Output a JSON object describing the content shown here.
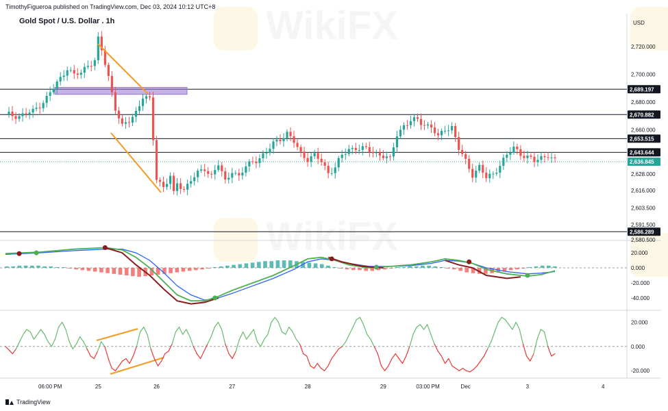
{
  "header": {
    "publisher": "TimothyFigueroa published on TradingView.com, Dec 03, 2024 10:12 UTC+8"
  },
  "chart": {
    "title": "Gold Spot / U.S. Dollar . 1h",
    "currency": "USD"
  },
  "watermark": {
    "text": "WikiFX"
  },
  "footer": {
    "brand": "TradingView"
  },
  "colors": {
    "bull": "#26a69a",
    "bear": "#ef5350",
    "wedge": "#f59a23",
    "zone": "#9575cd",
    "macd_fast": "#4caf50",
    "macd_slow": "#2962ff",
    "macd_dark": "#8b1a1a",
    "rsi_up": "#66bb6a",
    "rsi_down": "#e53935"
  },
  "chart_data": [
    {
      "type": "candlestick",
      "title": "Gold Spot / U.S. Dollar . 1h",
      "ylabel": "USD",
      "ylim": [
        2578,
        2732
      ],
      "y_ticks": [
        2720.0,
        2700.0,
        2680.0,
        2660.0,
        2628.0,
        2616.0,
        2603.5,
        2591.5,
        2580.5
      ],
      "y_tick_labels": [
        "2,720.000",
        "2,700.000",
        "2,680.000",
        "2,660.000",
        "2,628.000",
        "2,616.000",
        "2,603.500",
        "2,591.500",
        "2,580.500"
      ],
      "x_labels": [
        "06:00 PM",
        "25",
        "26",
        "27",
        "28",
        "29",
        "03:00 PM",
        "Dec",
        "3",
        "4"
      ],
      "levels": [
        {
          "value": 2689.197,
          "label": "2,689.197"
        },
        {
          "value": 2670.882,
          "label": "2,670.882"
        },
        {
          "value": 2653.515,
          "label": "2,653.515"
        },
        {
          "value": 2643.644,
          "label": "2,643.644"
        },
        {
          "value": 2586.289,
          "label": "2,586.289"
        }
      ],
      "last_price": {
        "value": 2636.845,
        "label": "2,636.845"
      },
      "zone": {
        "low": 2685.5,
        "high": 2690.5
      },
      "close_path": [
        [
          0,
          2671
        ],
        [
          4,
          2670
        ],
        [
          8,
          2673
        ],
        [
          12,
          2683
        ],
        [
          14,
          2690
        ],
        [
          16,
          2697
        ],
        [
          18,
          2705
        ],
        [
          20,
          2699
        ],
        [
          22,
          2701
        ],
        [
          24,
          2707
        ],
        [
          26,
          2710
        ],
        [
          27,
          2725
        ],
        [
          28,
          2717
        ],
        [
          30,
          2698
        ],
        [
          32,
          2676
        ],
        [
          34,
          2662
        ],
        [
          36,
          2666
        ],
        [
          38,
          2673
        ],
        [
          40,
          2684
        ],
        [
          42,
          2681
        ],
        [
          44,
          2625
        ],
        [
          46,
          2619
        ],
        [
          48,
          2626
        ],
        [
          49,
          2613
        ],
        [
          50,
          2621
        ],
        [
          52,
          2617
        ],
        [
          54,
          2624
        ],
        [
          56,
          2628
        ],
        [
          58,
          2632
        ],
        [
          60,
          2627
        ],
        [
          62,
          2635
        ],
        [
          64,
          2622
        ],
        [
          66,
          2631
        ],
        [
          68,
          2626
        ],
        [
          70,
          2633
        ],
        [
          72,
          2637
        ],
        [
          74,
          2640
        ],
        [
          76,
          2643
        ],
        [
          78,
          2650
        ],
        [
          80,
          2654
        ],
        [
          82,
          2657
        ],
        [
          84,
          2651
        ],
        [
          86,
          2643
        ],
        [
          88,
          2639
        ],
        [
          90,
          2641
        ],
        [
          92,
          2637
        ],
        [
          94,
          2629
        ],
        [
          96,
          2633
        ],
        [
          98,
          2641
        ],
        [
          100,
          2646
        ],
        [
          102,
          2647
        ],
        [
          104,
          2646
        ],
        [
          106,
          2645
        ],
        [
          108,
          2643
        ],
        [
          110,
          2641
        ],
        [
          112,
          2638
        ],
        [
          114,
          2657
        ],
        [
          116,
          2663
        ],
        [
          118,
          2666
        ],
        [
          120,
          2667
        ],
        [
          122,
          2664
        ],
        [
          124,
          2662
        ],
        [
          126,
          2654
        ],
        [
          128,
          2661
        ],
        [
          130,
          2662
        ],
        [
          132,
          2646
        ],
        [
          134,
          2637
        ],
        [
          136,
          2628
        ],
        [
          138,
          2633
        ],
        [
          140,
          2625
        ],
        [
          142,
          2628
        ],
        [
          144,
          2635
        ],
        [
          146,
          2641
        ],
        [
          148,
          2647
        ],
        [
          150,
          2643
        ],
        [
          152,
          2640
        ],
        [
          154,
          2637
        ],
        [
          156,
          2640
        ],
        [
          158,
          2642
        ],
        [
          160,
          2637
        ]
      ]
    },
    {
      "type": "macd",
      "y_ticks": [
        20,
        0,
        -20,
        -40
      ],
      "y_tick_labels": [
        "20.000",
        "0.000",
        "-20.000",
        "-40.000"
      ],
      "ylim": [
        -52,
        32
      ],
      "fast_line": [
        [
          0,
          19
        ],
        [
          10,
          21
        ],
        [
          20,
          25
        ],
        [
          29,
          27
        ],
        [
          34,
          24
        ],
        [
          38,
          14
        ],
        [
          42,
          0
        ],
        [
          46,
          -18
        ],
        [
          50,
          -36
        ],
        [
          54,
          -44
        ],
        [
          58,
          -44
        ],
        [
          62,
          -38
        ],
        [
          66,
          -30
        ],
        [
          72,
          -20
        ],
        [
          78,
          -10
        ],
        [
          84,
          3
        ],
        [
          88,
          12
        ],
        [
          92,
          14
        ],
        [
          96,
          10
        ],
        [
          100,
          4
        ],
        [
          106,
          0
        ],
        [
          112,
          2
        ],
        [
          118,
          4
        ],
        [
          124,
          8
        ],
        [
          128,
          12
        ],
        [
          132,
          10
        ],
        [
          136,
          6
        ],
        [
          140,
          -2
        ],
        [
          146,
          -8
        ],
        [
          152,
          -11
        ],
        [
          156,
          -9
        ],
        [
          160,
          -4
        ]
      ],
      "slow_line": [
        [
          0,
          18
        ],
        [
          10,
          20
        ],
        [
          20,
          23
        ],
        [
          29,
          25
        ],
        [
          34,
          25
        ],
        [
          38,
          20
        ],
        [
          42,
          10
        ],
        [
          46,
          -6
        ],
        [
          50,
          -24
        ],
        [
          54,
          -36
        ],
        [
          58,
          -43
        ],
        [
          62,
          -40
        ],
        [
          66,
          -34
        ],
        [
          72,
          -24
        ],
        [
          78,
          -14
        ],
        [
          84,
          -2
        ],
        [
          88,
          8
        ],
        [
          92,
          12
        ],
        [
          96,
          10
        ],
        [
          100,
          6
        ],
        [
          106,
          2
        ],
        [
          112,
          2
        ],
        [
          118,
          3
        ],
        [
          124,
          6
        ],
        [
          128,
          10
        ],
        [
          132,
          9
        ],
        [
          136,
          6
        ],
        [
          140,
          0
        ],
        [
          146,
          -5
        ],
        [
          152,
          -8
        ],
        [
          156,
          -7
        ],
        [
          160,
          -5
        ]
      ],
      "dark_line": [
        [
          29,
          27
        ],
        [
          34,
          20
        ],
        [
          38,
          4
        ],
        [
          42,
          -10
        ],
        [
          46,
          -28
        ],
        [
          50,
          -44
        ],
        [
          54,
          -48
        ],
        [
          58,
          -46
        ],
        [
          62,
          -40
        ],
        [
          94,
          14
        ],
        [
          98,
          8
        ],
        [
          104,
          2
        ],
        [
          110,
          0
        ],
        [
          128,
          10
        ],
        [
          132,
          4
        ],
        [
          136,
          0
        ],
        [
          140,
          -10
        ],
        [
          146,
          -14
        ],
        [
          150,
          -12
        ]
      ],
      "histogram": [
        2,
        2,
        3,
        3,
        3,
        3,
        2,
        2,
        1,
        1,
        -1,
        -2,
        -3,
        -4,
        -5,
        -6,
        -7,
        -8,
        -9,
        -10,
        -11,
        -12,
        -11,
        -10,
        -9,
        -8,
        -7,
        -6,
        -5,
        -4,
        -3,
        -2,
        -1,
        1,
        2,
        3,
        4,
        5,
        6,
        7,
        8,
        9,
        9,
        10,
        10,
        10,
        9,
        8,
        7,
        6,
        5,
        3,
        1,
        -1,
        -2,
        -3,
        -3,
        -4,
        -4,
        -3,
        -2,
        -1,
        1,
        1,
        2,
        2,
        3,
        3,
        2,
        1,
        -1,
        -2,
        -4,
        -6,
        -7,
        -8,
        -8,
        -7,
        -6,
        -5,
        -3,
        -2,
        -1,
        1,
        2,
        3,
        3,
        2
      ],
      "red_dots": [
        [
          4,
          19
        ],
        [
          29,
          27
        ],
        [
          95,
          12
        ],
        [
          135,
          8
        ]
      ],
      "green_dots": [
        [
          9,
          20
        ],
        [
          61,
          -40
        ],
        [
          108,
          1
        ],
        [
          152,
          -10
        ]
      ]
    },
    {
      "type": "oscillator",
      "y_ticks": [
        20,
        0,
        -20
      ],
      "y_tick_labels": [
        "20.000",
        "0.000",
        "-20.000"
      ],
      "ylim": [
        -25,
        27
      ],
      "line": [
        [
          0,
          0
        ],
        [
          1,
          -3
        ],
        [
          2,
          -6
        ],
        [
          3,
          -2
        ],
        [
          4,
          4
        ],
        [
          5,
          10
        ],
        [
          6,
          14
        ],
        [
          7,
          12
        ],
        [
          8,
          6
        ],
        [
          9,
          10
        ],
        [
          10,
          14
        ],
        [
          11,
          10
        ],
        [
          12,
          4
        ],
        [
          13,
          0
        ],
        [
          14,
          6
        ],
        [
          15,
          16
        ],
        [
          16,
          20
        ],
        [
          17,
          14
        ],
        [
          18,
          4
        ],
        [
          19,
          -2
        ],
        [
          20,
          2
        ],
        [
          21,
          8
        ],
        [
          22,
          4
        ],
        [
          23,
          -2
        ],
        [
          24,
          -8
        ],
        [
          25,
          -10
        ],
        [
          26,
          -4
        ],
        [
          27,
          4
        ],
        [
          28,
          0
        ],
        [
          29,
          -10
        ],
        [
          30,
          -18
        ],
        [
          31,
          -20
        ],
        [
          32,
          -16
        ],
        [
          33,
          -12
        ],
        [
          34,
          -10
        ],
        [
          35,
          -14
        ],
        [
          36,
          -8
        ],
        [
          37,
          0
        ],
        [
          38,
          12
        ],
        [
          39,
          16
        ],
        [
          40,
          10
        ],
        [
          41,
          -2
        ],
        [
          42,
          -10
        ],
        [
          43,
          -16
        ],
        [
          44,
          -12
        ],
        [
          45,
          -6
        ],
        [
          46,
          -4
        ],
        [
          47,
          2
        ],
        [
          48,
          12
        ],
        [
          49,
          16
        ],
        [
          50,
          10
        ],
        [
          51,
          14
        ],
        [
          52,
          8
        ],
        [
          53,
          0
        ],
        [
          54,
          -6
        ],
        [
          55,
          -10
        ],
        [
          56,
          -4
        ],
        [
          57,
          2
        ],
        [
          58,
          8
        ],
        [
          59,
          16
        ],
        [
          60,
          20
        ],
        [
          61,
          14
        ],
        [
          62,
          2
        ],
        [
          63,
          -6
        ],
        [
          64,
          -10
        ],
        [
          65,
          -4
        ],
        [
          66,
          6
        ],
        [
          67,
          12
        ],
        [
          68,
          6
        ],
        [
          69,
          10
        ],
        [
          70,
          14
        ],
        [
          71,
          4
        ],
        [
          72,
          0
        ],
        [
          73,
          6
        ],
        [
          74,
          10
        ],
        [
          75,
          20
        ],
        [
          76,
          24
        ],
        [
          77,
          20
        ],
        [
          78,
          12
        ],
        [
          79,
          10
        ],
        [
          80,
          16
        ],
        [
          81,
          12
        ],
        [
          82,
          6
        ],
        [
          83,
          2
        ],
        [
          84,
          -6
        ],
        [
          85,
          -8
        ],
        [
          86,
          -16
        ],
        [
          87,
          -18
        ],
        [
          88,
          -14
        ],
        [
          89,
          -18
        ],
        [
          90,
          -20
        ],
        [
          91,
          -16
        ],
        [
          92,
          -10
        ],
        [
          93,
          -6
        ],
        [
          94,
          -2
        ],
        [
          95,
          0
        ],
        [
          96,
          4
        ],
        [
          97,
          10
        ],
        [
          98,
          16
        ],
        [
          99,
          22
        ],
        [
          100,
          24
        ],
        [
          101,
          18
        ],
        [
          102,
          10
        ],
        [
          103,
          6
        ],
        [
          104,
          0
        ],
        [
          105,
          -6
        ],
        [
          106,
          -16
        ],
        [
          107,
          -20
        ],
        [
          108,
          -16
        ],
        [
          109,
          -10
        ],
        [
          110,
          -6
        ],
        [
          111,
          -10
        ],
        [
          112,
          -14
        ],
        [
          113,
          -8
        ],
        [
          114,
          0
        ],
        [
          115,
          10
        ],
        [
          116,
          16
        ],
        [
          117,
          18
        ],
        [
          118,
          14
        ],
        [
          119,
          18
        ],
        [
          120,
          10
        ],
        [
          121,
          2
        ],
        [
          122,
          -4
        ],
        [
          123,
          -8
        ],
        [
          124,
          -14
        ],
        [
          125,
          -10
        ],
        [
          126,
          -16
        ],
        [
          127,
          -18
        ],
        [
          128,
          -20
        ],
        [
          129,
          -18
        ],
        [
          130,
          -20
        ],
        [
          131,
          -21
        ],
        [
          132,
          -19
        ],
        [
          133,
          -16
        ],
        [
          134,
          -12
        ],
        [
          135,
          -8
        ],
        [
          136,
          -2
        ],
        [
          137,
          4
        ],
        [
          138,
          12
        ],
        [
          139,
          20
        ],
        [
          140,
          24
        ],
        [
          141,
          22
        ],
        [
          142,
          18
        ],
        [
          143,
          14
        ],
        [
          144,
          20
        ],
        [
          145,
          14
        ],
        [
          146,
          2
        ],
        [
          147,
          -8
        ],
        [
          148,
          -12
        ],
        [
          149,
          -6
        ],
        [
          150,
          6
        ],
        [
          151,
          14
        ],
        [
          152,
          12
        ],
        [
          153,
          0
        ],
        [
          154,
          -8
        ],
        [
          155,
          -6
        ]
      ]
    }
  ]
}
